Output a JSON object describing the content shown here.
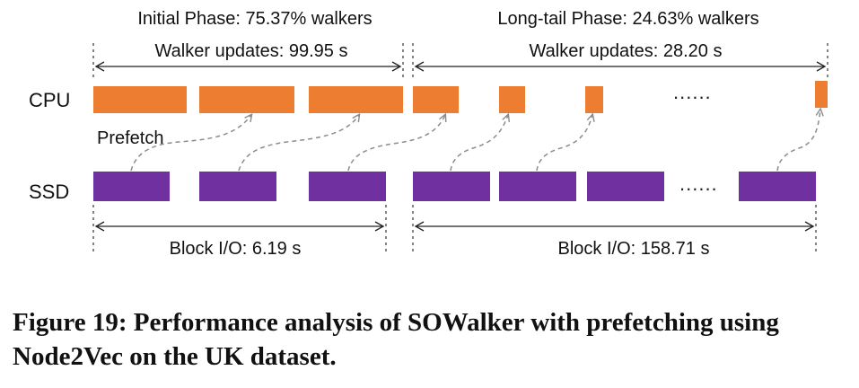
{
  "phases": {
    "initial_title": "Initial Phase: 75.37% walkers",
    "longtail_title": "Long-tail Phase: 24.63% walkers",
    "initial_walker_updates": "Walker updates: 99.95 s",
    "longtail_walker_updates": "Walker updates: 28.20 s",
    "initial_block_io": "Block I/O: 6.19 s",
    "longtail_block_io": "Block I/O: 158.71 s"
  },
  "rows": {
    "cpu": "CPU",
    "ssd": "SSD"
  },
  "prefetch_label": "Prefetch",
  "ellipsis": "......",
  "caption": "Figure 19: Performance analysis of SOWalker with prefetching using Node2Vec on the UK dataset.",
  "colors": {
    "cpu": "#ED7D31",
    "ssd": "#7030A0",
    "dash": "#8C8C8C"
  }
}
